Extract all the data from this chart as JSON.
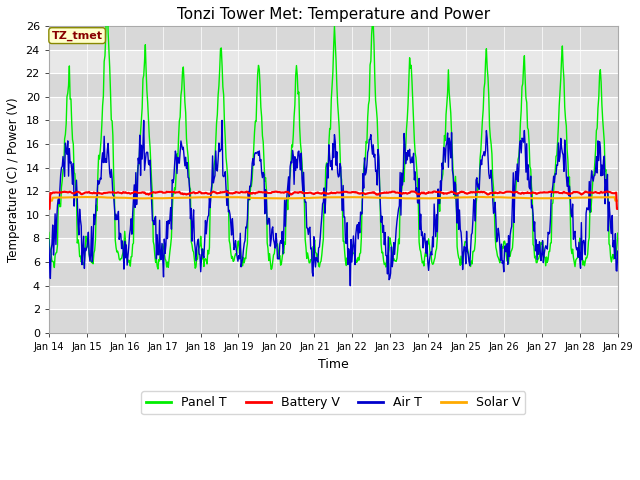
{
  "title": "Tonzi Tower Met: Temperature and Power",
  "xlabel": "Time",
  "ylabel": "Temperature (C) / Power (V)",
  "ylim": [
    0,
    26
  ],
  "yticks": [
    0,
    2,
    4,
    6,
    8,
    10,
    12,
    14,
    16,
    18,
    20,
    22,
    24,
    26
  ],
  "xtick_labels": [
    "Jan 14",
    "Jan 15",
    "Jan 16",
    "Jan 17",
    "Jan 18",
    "Jan 19",
    "Jan 20",
    "Jan 21",
    "Jan 22",
    "Jan 23",
    "Jan 24",
    "Jan 25",
    "Jan 26",
    "Jan 27",
    "Jan 28",
    "Jan 29"
  ],
  "bg_color": "#ffffff",
  "plot_bg_color": "#e8e8e8",
  "band_colors": [
    "#d8d8d8",
    "#e8e8e8"
  ],
  "grid_color": "#ffffff",
  "annotation_text": "TZ_tmet",
  "annotation_bg": "#ffffcc",
  "annotation_border": "#888800",
  "annotation_text_color": "#880000",
  "series": {
    "panel_t": {
      "color": "#00ee00",
      "label": "Panel T",
      "lw": 1.0
    },
    "battery_v": {
      "color": "#ff0000",
      "label": "Battery V",
      "lw": 1.5
    },
    "air_t": {
      "color": "#0000cc",
      "label": "Air T",
      "lw": 1.0
    },
    "solar_v": {
      "color": "#ffaa00",
      "label": "Solar V",
      "lw": 1.5
    }
  },
  "legend_fontsize": 9,
  "title_fontsize": 11
}
